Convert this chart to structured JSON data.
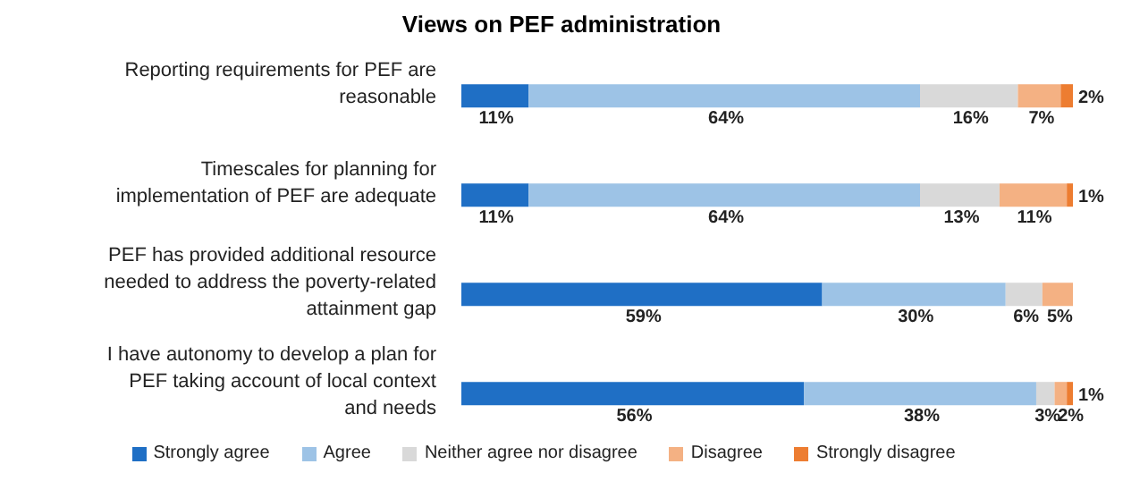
{
  "chart_data": {
    "type": "bar",
    "title": "Views on PEF administration",
    "orientation": "horizontal",
    "stacked": true,
    "legend": "bottom",
    "categories": [
      "Reporting requirements for PEF are reasonable",
      "Timescales for planning for implementation of PEF are adequate",
      "PEF has provided additional resource needed to address the poverty-related attainment gap",
      "I have autonomy to develop a plan for PEF taking account of local context and needs"
    ],
    "series": [
      {
        "name": "Strongly agree",
        "color": "#1f6fc5",
        "values": [
          11,
          11,
          59,
          56
        ],
        "value_labels": [
          "11%",
          "11%",
          "59%",
          "56%"
        ]
      },
      {
        "name": "Agree",
        "color": "#9dc3e6",
        "values": [
          64,
          64,
          30,
          38
        ],
        "value_labels": [
          "64%",
          "64%",
          "30%",
          "38%"
        ]
      },
      {
        "name": "Neither agree nor disagree",
        "color": "#d9d9d9",
        "values": [
          16,
          13,
          6,
          3
        ],
        "value_labels": [
          "16%",
          "13%",
          "6%",
          "3%"
        ]
      },
      {
        "name": "Disagree",
        "color": "#f4b183",
        "values": [
          7,
          11,
          5,
          2
        ],
        "value_labels": [
          "7%",
          "11%",
          "5%",
          "2%"
        ]
      },
      {
        "name": "Strongly disagree",
        "color": "#ed7d31",
        "values": [
          2,
          1,
          null,
          1
        ],
        "value_labels": [
          "2%",
          "1%",
          null,
          "1%"
        ]
      }
    ]
  }
}
